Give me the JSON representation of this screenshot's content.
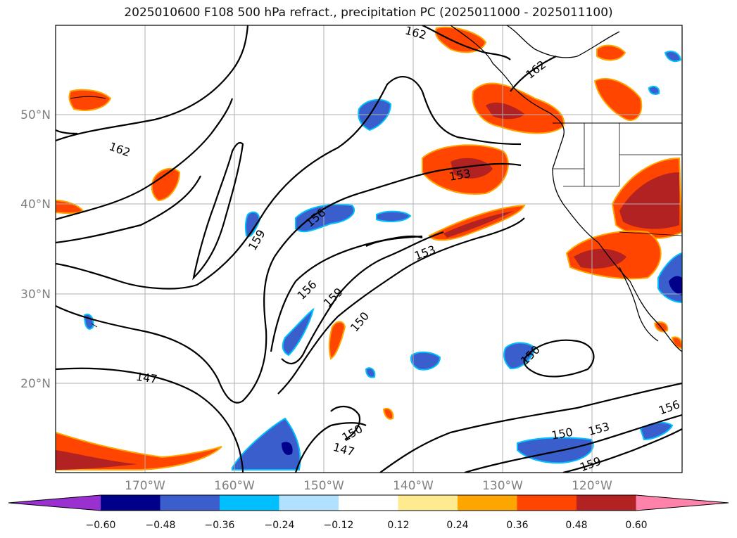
{
  "title": "2025010600 F108 500 hPa refract., precipitation PC (2025011000 - 2025011100)",
  "map": {
    "lat_labels": [
      "50°N",
      "40°N",
      "30°N",
      "20°N"
    ],
    "lon_labels": [
      "170°W",
      "160°W",
      "150°W",
      "140°W",
      "130°W",
      "120°W"
    ],
    "contour_labels": [
      "162",
      "162",
      "162",
      "153",
      "156",
      "159",
      "153",
      "156",
      "159",
      "150",
      "150",
      "147",
      "150",
      "147",
      "150",
      "153",
      "156",
      "159"
    ],
    "grid": true,
    "land_color": "#ffffff",
    "coastline_color": "#000000"
  },
  "colorbar": {
    "tick_labels": [
      "−0.60",
      "−0.48",
      "−0.36",
      "−0.24",
      "−0.12",
      "0.12",
      "0.24",
      "0.36",
      "0.48",
      "0.60"
    ],
    "colors": [
      "#9b30d0",
      "#00008b",
      "#3a5fcd",
      "#00bfff",
      "#b0e2ff",
      "#ffffff",
      "#ffeb8f",
      "#ffa500",
      "#ff4500",
      "#b22222",
      "#ff82ab"
    ]
  }
}
